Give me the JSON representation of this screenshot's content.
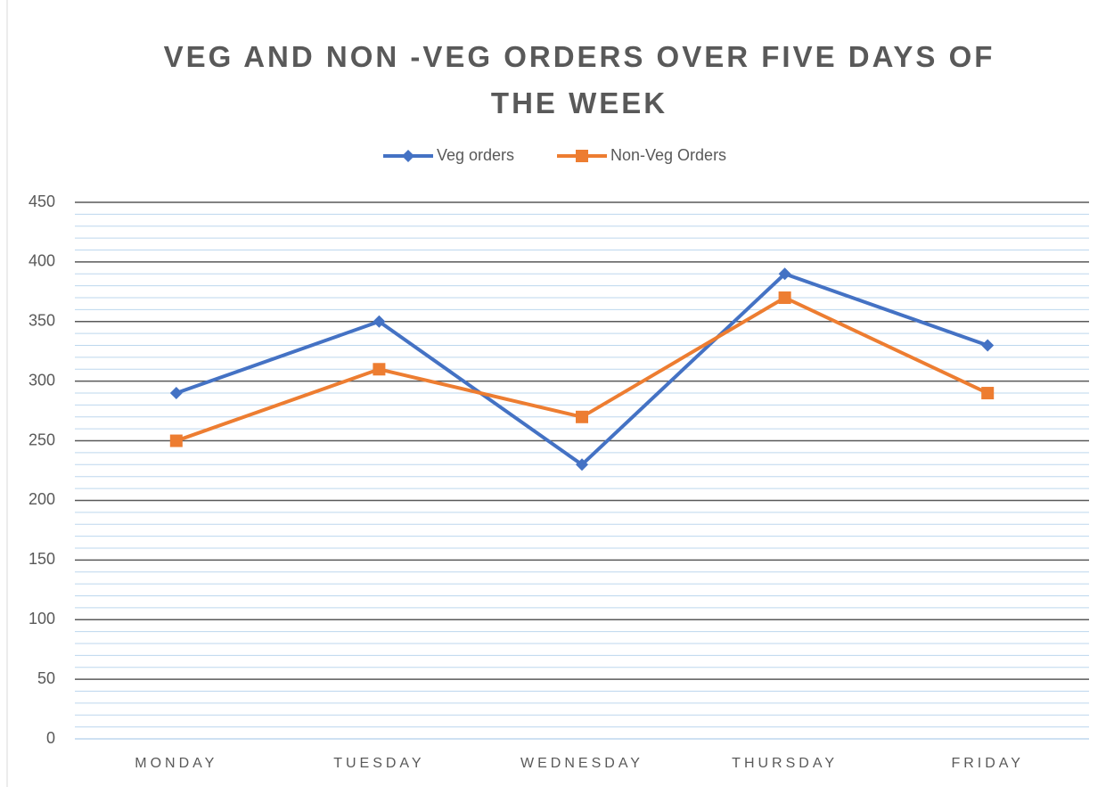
{
  "chart_data": {
    "type": "line",
    "title": "VEG AND NON -VEG ORDERS OVER FIVE DAYS OF THE WEEK",
    "categories": [
      "MONDAY",
      "TUESDAY",
      "WEDNESDAY",
      "THURSDAY",
      "FRIDAY"
    ],
    "series": [
      {
        "name": "Veg orders",
        "color": "#4472c4",
        "marker": "diamond",
        "values": [
          290,
          350,
          230,
          390,
          330
        ]
      },
      {
        "name": "Non-Veg Orders",
        "color": "#ed7d31",
        "marker": "square",
        "values": [
          250,
          310,
          270,
          370,
          290
        ]
      }
    ],
    "ylim": [
      0,
      450
    ],
    "yticks": [
      0,
      50,
      100,
      150,
      200,
      250,
      300,
      350,
      400,
      450
    ],
    "minor_yticks": [
      10,
      20,
      30,
      40,
      60,
      70,
      80,
      90,
      110,
      120,
      130,
      140,
      160,
      170,
      180,
      190,
      210,
      220,
      230,
      240,
      260,
      270,
      280,
      290,
      310,
      320,
      330,
      340,
      360,
      370,
      380,
      390,
      410,
      420,
      430,
      440
    ],
    "grid": true,
    "legend": "top"
  }
}
